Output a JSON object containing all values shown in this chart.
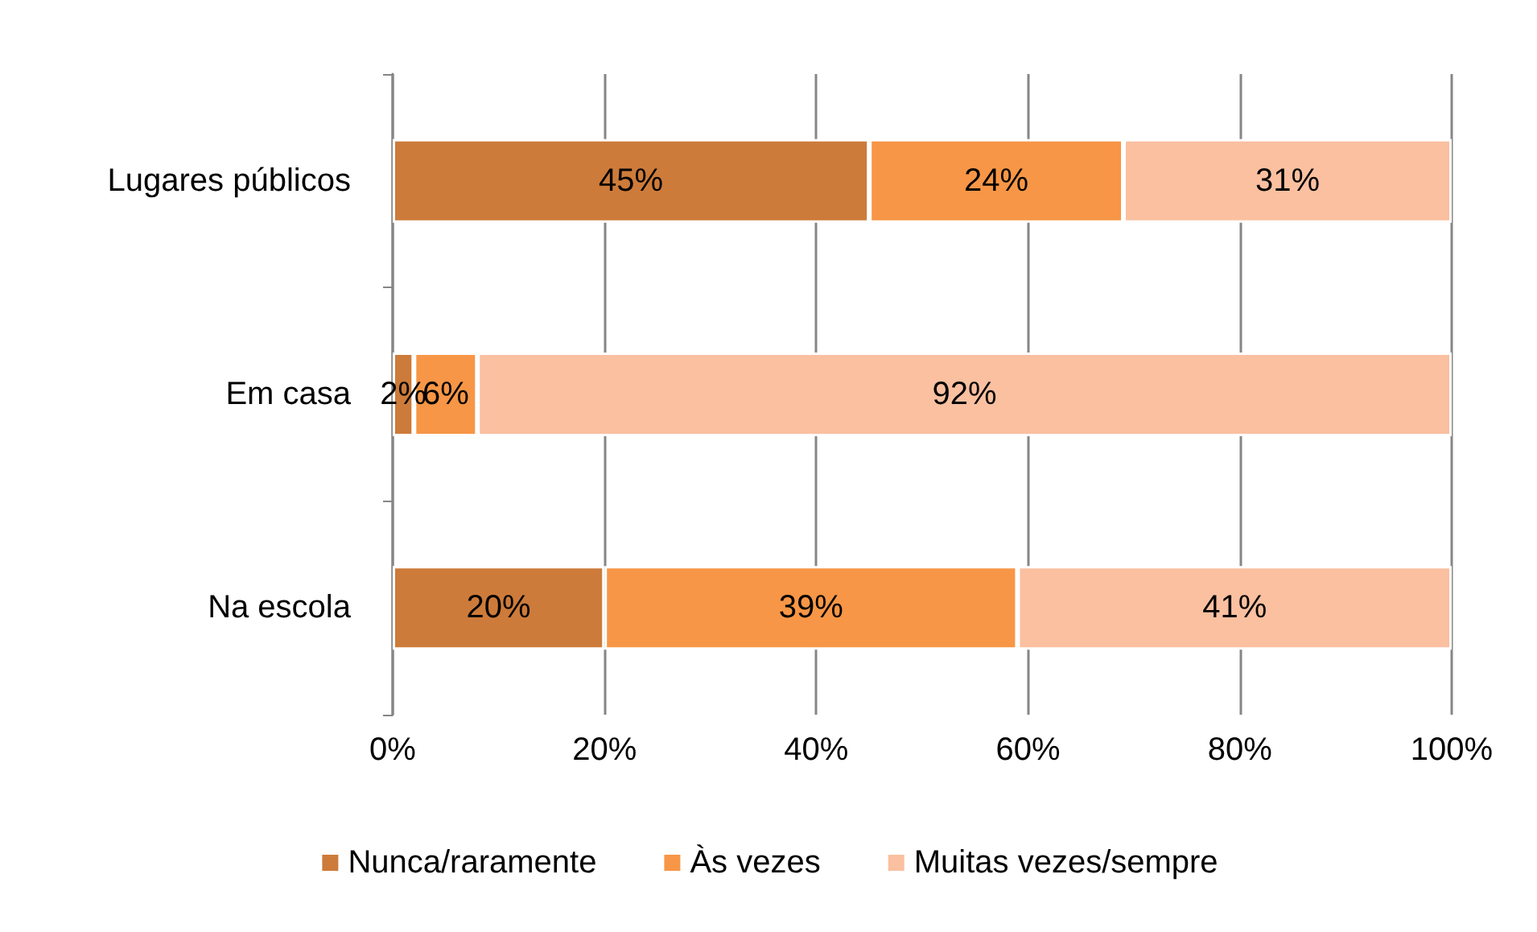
{
  "chart_data": {
    "type": "bar",
    "orientation": "horizontal",
    "stacked": true,
    "categories": [
      "Lugares públicos",
      "Em casa",
      "Na escola"
    ],
    "series": [
      {
        "name": "Nunca/raramente",
        "color": "#cd7b3a",
        "values": [
          45,
          2,
          20
        ],
        "value_labels": [
          "45%",
          "2%",
          "20%"
        ]
      },
      {
        "name": "Às vezes",
        "color": "#f79646",
        "values": [
          24,
          6,
          39
        ],
        "value_labels": [
          "24%",
          "6%",
          "39%"
        ]
      },
      {
        "name": "Muitas vezes/sempre",
        "color": "#fac0a0",
        "values": [
          31,
          92,
          41
        ],
        "value_labels": [
          "31%",
          "92%",
          "41%"
        ]
      }
    ],
    "xlim": [
      0,
      100
    ],
    "xticks": [
      {
        "value": 0,
        "label": "0%"
      },
      {
        "value": 20,
        "label": "20%"
      },
      {
        "value": 40,
        "label": "40%"
      },
      {
        "value": 60,
        "label": "60%"
      },
      {
        "value": 80,
        "label": "80%"
      },
      {
        "value": 100,
        "label": "100%"
      }
    ],
    "grid": "x",
    "legend": "bottom"
  }
}
